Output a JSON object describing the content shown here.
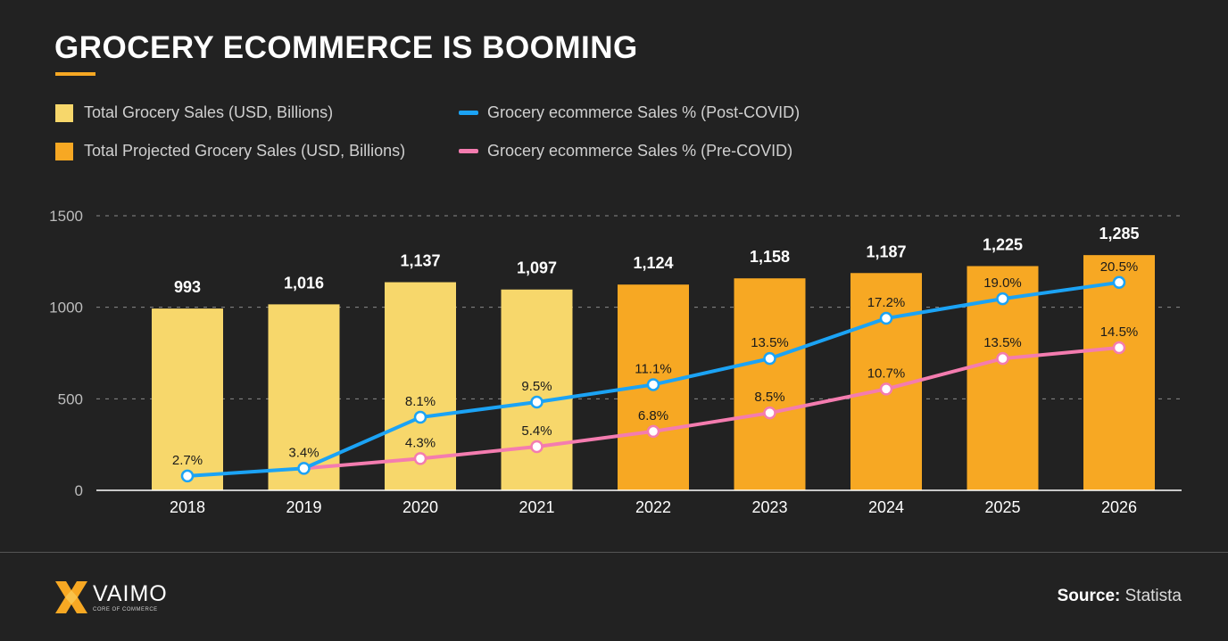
{
  "title": "GROCERY ECOMMERCE IS BOOMING",
  "source_label": "Source:",
  "source_value": "Statista",
  "logo": {
    "name": "VAIMO",
    "tagline": "CORE OF COMMERCE"
  },
  "colors": {
    "actual": "#f7d76b",
    "projected": "#f7a823",
    "post_covid": "#1ba3f5",
    "pre_covid": "#f47caf",
    "background": "#222222"
  },
  "chart_data": {
    "type": "bar",
    "categories": [
      "2018",
      "2019",
      "2020",
      "2021",
      "2022",
      "2023",
      "2024",
      "2025",
      "2026"
    ],
    "ylim": [
      0,
      1500
    ],
    "yticks": [
      0,
      500,
      1000,
      1500
    ],
    "grid": true,
    "legend_placement": "top-left",
    "bars": {
      "values": [
        993,
        1016,
        1137,
        1097,
        1124,
        1158,
        1187,
        1225,
        1285
      ],
      "labels": [
        "993",
        "1,016",
        "1,137",
        "1,097",
        "1,124",
        "1,158",
        "1,187",
        "1,225",
        "1,285"
      ],
      "projected": [
        false,
        false,
        false,
        false,
        true,
        true,
        true,
        true,
        true
      ]
    },
    "series": [
      {
        "name": "Total Grocery Sales (USD, Billions)",
        "kind": "bar",
        "color": "#f7d76b"
      },
      {
        "name": "Total Projected Grocery Sales (USD, Billions)",
        "kind": "bar",
        "color": "#f7a823"
      },
      {
        "name": "Grocery ecommerce Sales % (Post-COVID)",
        "kind": "line",
        "color": "#1ba3f5",
        "values": [
          2.7,
          3.4,
          8.1,
          9.5,
          11.1,
          13.5,
          17.2,
          19.0,
          20.5
        ],
        "labels": [
          "2.7%",
          "3.4%",
          "8.1%",
          "9.5%",
          "11.1%",
          "13.5%",
          "17.2%",
          "19.0%",
          "20.5%"
        ]
      },
      {
        "name": "Grocery ecommerce Sales % (Pre-COVID)",
        "kind": "line",
        "color": "#f47caf",
        "values": [
          null,
          3.4,
          4.3,
          5.4,
          6.8,
          8.5,
          10.7,
          13.5,
          14.5
        ],
        "labels": [
          null,
          null,
          "4.3%",
          "5.4%",
          "6.8%",
          "8.5%",
          "10.7%",
          "13.5%",
          "14.5%"
        ]
      }
    ],
    "secondary_axis_hidden": true
  }
}
